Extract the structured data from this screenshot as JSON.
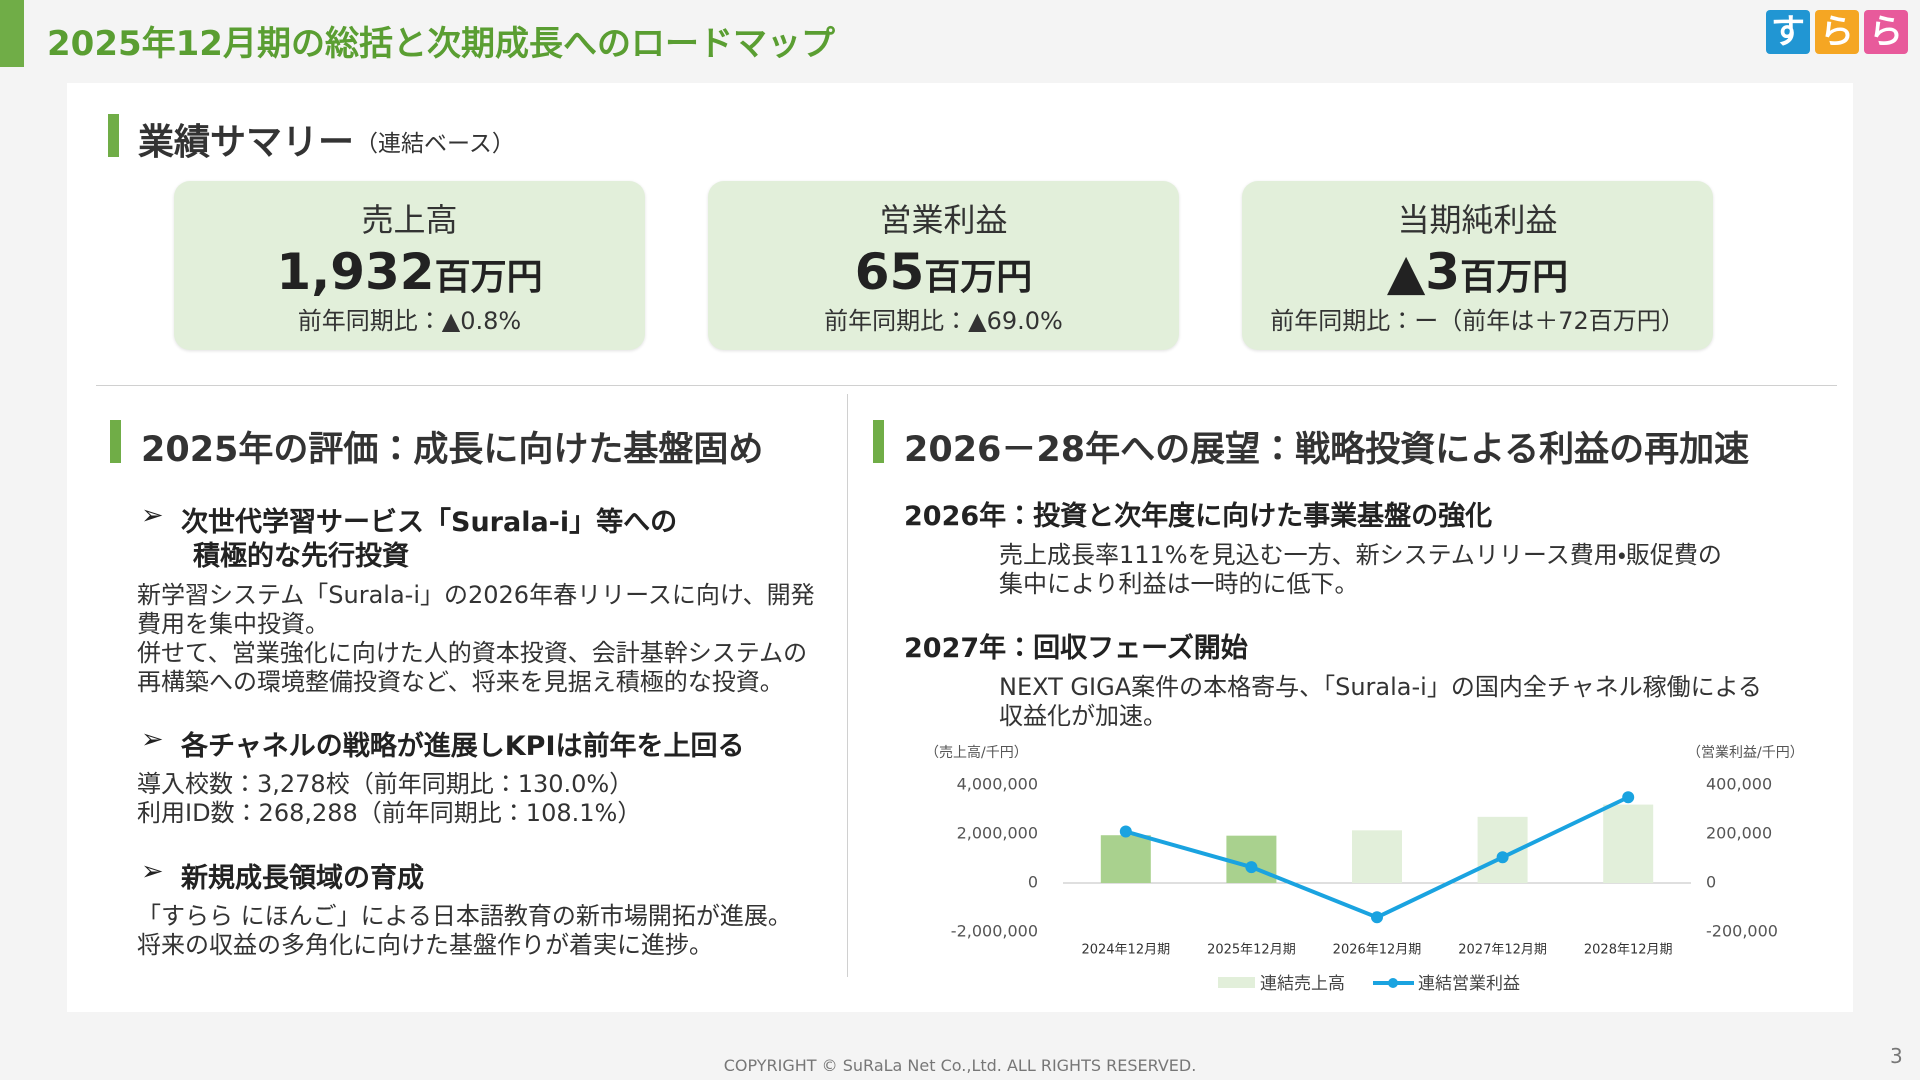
{
  "header": {
    "title": "2025年12月期の総括と次期成長へのロードマップ",
    "logo": [
      "す",
      "ら",
      "ら"
    ]
  },
  "summary": {
    "heading": "業績サマリー",
    "note": "（連結ベース）",
    "cards": [
      {
        "label": "売上高",
        "value": "1,932",
        "unit": "百万円",
        "comparison": "前年同期比：▲0.8%"
      },
      {
        "label": "営業利益",
        "value": "65",
        "unit": "百万円",
        "comparison": "前年同期比：▲69.0%"
      },
      {
        "label": "当期純利益",
        "value": "▲3",
        "unit": "百万円",
        "comparison": "前年同期比：ー（前年は＋72百万円）"
      }
    ]
  },
  "left": {
    "heading": "2025年の評価：成長に向けた基盤固め",
    "items": [
      {
        "heading": [
          "次世代学習サービス「Surala-i」等への",
          "積極的な先行投資"
        ],
        "body": [
          "新学習システム「Surala-i」の2026年春リリースに向け、開発",
          "費用を集中投資。",
          "併せて、営業強化に向けた人的資本投資、会計基幹システムの",
          "再構築への環境整備投資など、将来を見据え積極的な投資。"
        ]
      },
      {
        "heading": [
          "各チャネルの戦略が進展しKPIは前年を上回る"
        ],
        "body": [
          "導入校数：3,278校（前年同期比：130.0%）",
          "利用ID数：268,288（前年同期比：108.1%）"
        ]
      },
      {
        "heading": [
          "新規成長領域の育成"
        ],
        "body": [
          "「すらら にほんご」による日本語教育の新市場開拓が進展。",
          "将来の収益の多角化に向けた基盤作りが着実に進捗。"
        ]
      }
    ]
  },
  "right": {
    "heading": "2026－28年への展望：戦略投資による利益の再加速",
    "items": [
      {
        "heading": "2026年：投資と次年度に向けた事業基盤の強化",
        "body": [
          "売上成長率111%を見込む一方、新システムリリース費用・販促費の",
          "集中により利益は一時的に低下。"
        ]
      },
      {
        "heading": "2027年：回収フェーズ開始",
        "body": [
          "NEXT GIGA案件の本格寄与、「Surala-i」の国内全チャネル稼働による",
          "収益化が加速。"
        ]
      }
    ]
  },
  "chart_data": {
    "type": "bar-line",
    "y_label": "（売上高/千円）",
    "y2_label": "（営業利益/千円）",
    "categories": [
      "2024年12月期",
      "2025年12月期",
      "2026年12月期",
      "2027年12月期",
      "2028年12月期"
    ],
    "series": [
      {
        "name": "連結売上高",
        "type": "bar",
        "color": "#e2efda",
        "colors": [
          "#a9d18e",
          "#a9d18e",
          "#e2efda",
          "#e2efda",
          "#e2efda"
        ],
        "values": [
          1950000,
          1932000,
          2150000,
          2700000,
          3200000
        ]
      },
      {
        "name": "連結営業利益",
        "type": "line",
        "axis": "y2",
        "color": "#1aa3e0",
        "values": [
          210000,
          65000,
          -140000,
          105000,
          350000
        ]
      }
    ],
    "ylim": [
      -2000000,
      4000000
    ],
    "yticks": [
      {
        "value": -2000000,
        "label": "-2,000,000"
      },
      0,
      {
        "value": 2000000,
        "label": "2,000,000"
      },
      {
        "value": 4000000,
        "label": "4,000,000"
      }
    ],
    "y2lim": [
      -200000,
      400000
    ],
    "y2ticks": [
      {
        "value": -200000,
        "label": "-200,000"
      },
      0,
      {
        "value": 200000,
        "label": "200,000"
      },
      {
        "value": 400000,
        "label": "400,000"
      }
    ],
    "grid": false,
    "legend": "bottom"
  },
  "footer": {
    "copyright": "COPYRIGHT © SuRaLa Net Co.,Ltd. ALL RIGHTS RESERVED.",
    "page": "3"
  }
}
